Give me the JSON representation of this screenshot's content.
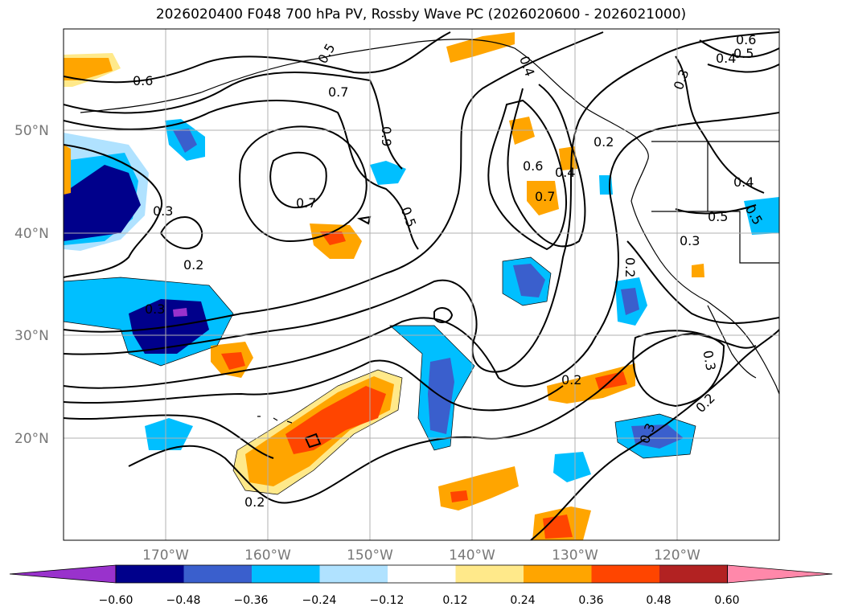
{
  "title": "2026020400 F048 700 hPa PV, Rossby Wave PC (2026020600 - 2026021000)",
  "lat_ticks": [
    "50°N",
    "40°N",
    "30°N",
    "20°N"
  ],
  "lon_ticks": [
    "170°W",
    "160°W",
    "150°W",
    "140°W",
    "130°W",
    "120°W"
  ],
  "colorbar": {
    "tick_labels": [
      "−0.60",
      "−0.48",
      "−0.36",
      "−0.24",
      "−0.12",
      "0.12",
      "0.24",
      "0.36",
      "0.48",
      "0.60"
    ],
    "levels": [
      -0.6,
      -0.48,
      -0.36,
      -0.24,
      -0.12,
      0.12,
      0.24,
      0.36,
      0.48,
      0.6
    ],
    "colors": [
      "#9932cc",
      "#00008b",
      "#3a5fcd",
      "#00bfff",
      "#b0e2ff",
      "#ffffff",
      "#ffe98a",
      "#ffa500",
      "#ff4500",
      "#b22222",
      "#ff88aa"
    ]
  },
  "contour_labels": [
    "0.6",
    "0.7",
    "0.9",
    "0.3",
    "0.6",
    "0.5",
    "0.4",
    "0.7",
    "0.3",
    "0.2",
    "0.7",
    "0.5",
    "0.2",
    "0.3",
    "0.4",
    "0.3",
    "0.3",
    "0.2",
    "0.3",
    "0.2",
    "0.2",
    "0.6",
    "0.5",
    "0.4",
    "0.2",
    "0.5",
    "0.4",
    "0.5"
  ]
}
